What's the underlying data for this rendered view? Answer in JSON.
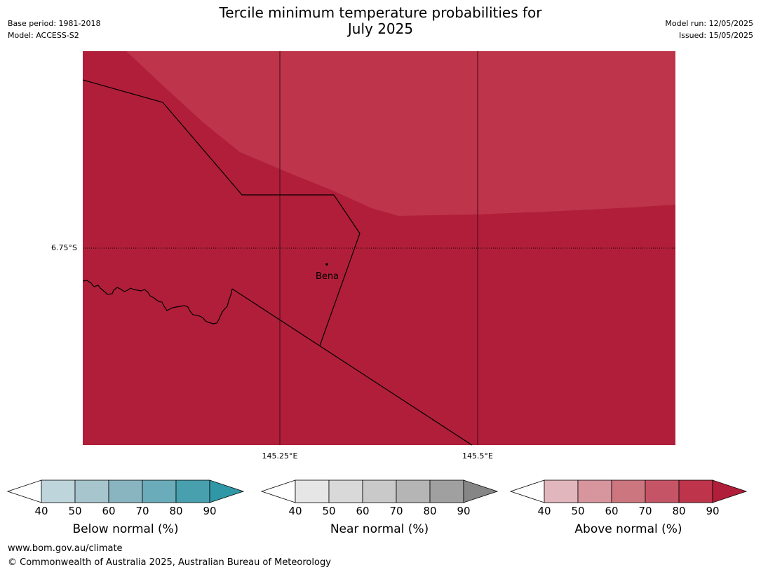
{
  "title_line1": "Tercile minimum temperature probabilities for",
  "title_line2": "July 2025",
  "meta_left": {
    "base_period": "Base period: 1981-2018",
    "model": "Model: ACCESS-S2"
  },
  "meta_right": {
    "model_run": "Model run: 12/05/2025",
    "issued": "Issued: 15/05/2025"
  },
  "map": {
    "place": "Bena",
    "lat_label": "6.75°S",
    "lon_labels": [
      "145.25°E",
      "145.5°E"
    ],
    "colors": {
      "dark": "#b11e39",
      "light": "#bd344b"
    }
  },
  "colorbars": [
    {
      "label": "Below normal (%)",
      "ticks": [
        "40",
        "50",
        "60",
        "70",
        "80",
        "90"
      ],
      "colors": [
        "#bfd5dc",
        "#a6c5cc",
        "#89b5c1",
        "#6aacb9",
        "#48a0ae",
        "#2f97a6"
      ]
    },
    {
      "label": "Near normal (%)",
      "ticks": [
        "40",
        "50",
        "60",
        "70",
        "80",
        "90"
      ],
      "colors": [
        "#e6e6e6",
        "#d9d9d9",
        "#c9c9c9",
        "#b5b5b5",
        "#a0a0a0",
        "#868686"
      ]
    },
    {
      "label": "Above normal (%)",
      "ticks": [
        "40",
        "50",
        "60",
        "70",
        "80",
        "90"
      ],
      "colors": [
        "#e2b6bd",
        "#d7959e",
        "#cc7680",
        "#c55566",
        "#bd344b",
        "#b11e39"
      ]
    }
  ],
  "footer": {
    "url": "www.bom.gov.au/climate",
    "copyright": "© Commonwealth of Australia 2025, Australian Bureau of Meteorology"
  }
}
